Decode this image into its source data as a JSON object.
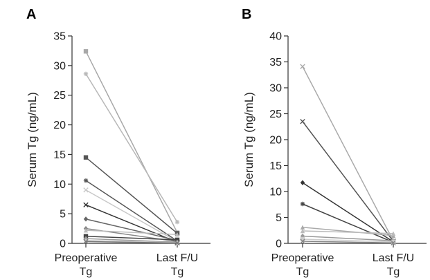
{
  "chart_data": [
    {
      "type": "line",
      "panel": "A",
      "ylabel": "Serum Tg (ng/mL)",
      "xlabel": "",
      "categories": [
        [
          "Preoperative",
          "Tg"
        ],
        [
          "Last F/U",
          "Tg"
        ]
      ],
      "ylim": [
        0,
        35
      ],
      "yticks": [
        "0",
        "5",
        "10",
        "15",
        "20",
        "25",
        "30",
        "35"
      ],
      "grid": false,
      "legend": "none",
      "series": [
        {
          "values": [
            32.4,
            1.8
          ],
          "color": "#a8a8a8",
          "marker": "square"
        },
        {
          "values": [
            28.6,
            3.6
          ],
          "color": "#b8b8b8",
          "marker": "star"
        },
        {
          "values": [
            14.5,
            1.7
          ],
          "color": "#555555",
          "marker": "square"
        },
        {
          "values": [
            10.6,
            0.4
          ],
          "color": "#555555",
          "marker": "star"
        },
        {
          "values": [
            9.0,
            0.3
          ],
          "color": "#c8c8c8",
          "marker": "cross"
        },
        {
          "values": [
            6.5,
            0.2
          ],
          "color": "#333333",
          "marker": "cross"
        },
        {
          "values": [
            4.1,
            0.5
          ],
          "color": "#666666",
          "marker": "diamond"
        },
        {
          "values": [
            2.5,
            0.3
          ],
          "color": "#888888",
          "marker": "diamond"
        },
        {
          "values": [
            2.2,
            1.5
          ],
          "color": "#bbbbbb",
          "marker": "triangle"
        },
        {
          "values": [
            1.2,
            0.6
          ],
          "color": "#444444",
          "marker": "square"
        },
        {
          "values": [
            0.8,
            0.2
          ],
          "color": "#999999",
          "marker": "diamond"
        },
        {
          "values": [
            0.5,
            0.1
          ],
          "color": "#cccccc",
          "marker": "triangle"
        },
        {
          "values": [
            0.3,
            0.05
          ],
          "color": "#777777",
          "marker": "cross"
        }
      ]
    },
    {
      "type": "line",
      "panel": "B",
      "ylabel": "Serum Tg (ng/mL)",
      "xlabel": "",
      "categories": [
        [
          "Preoperative",
          "Tg"
        ],
        [
          "Last F/U",
          "Tg"
        ]
      ],
      "ylim": [
        0,
        40
      ],
      "yticks": [
        "0",
        "5",
        "10",
        "15",
        "20",
        "25",
        "30",
        "35",
        "40"
      ],
      "grid": false,
      "legend": "none",
      "series": [
        {
          "values": [
            34.1,
            0.5
          ],
          "color": "#aaaaaa",
          "marker": "cross"
        },
        {
          "values": [
            23.5,
            0.4
          ],
          "color": "#555555",
          "marker": "cross"
        },
        {
          "values": [
            11.7,
            0.3
          ],
          "color": "#333333",
          "marker": "diamond"
        },
        {
          "values": [
            7.6,
            0.2
          ],
          "color": "#444444",
          "marker": "star"
        },
        {
          "values": [
            3.1,
            1.5
          ],
          "color": "#aaaaaa",
          "marker": "triangle"
        },
        {
          "values": [
            2.4,
            1.9
          ],
          "color": "#bbbbbb",
          "marker": "triangle"
        },
        {
          "values": [
            1.4,
            0.5
          ],
          "color": "#999999",
          "marker": "diamond"
        },
        {
          "values": [
            0.8,
            0.3
          ],
          "color": "#cccccc",
          "marker": "square"
        },
        {
          "values": [
            0.4,
            0.1
          ],
          "color": "#888888",
          "marker": "cross"
        }
      ]
    }
  ]
}
